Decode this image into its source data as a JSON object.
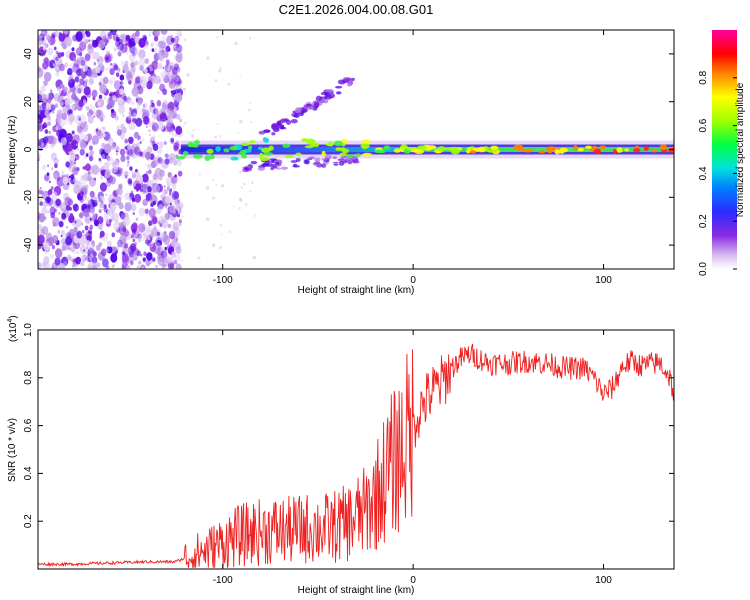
{
  "title": "C2E1.2026.004.00.08.G01",
  "chart_data": [
    {
      "type": "heatmap",
      "name": "spectrogram",
      "xlabel": "Height of straight line (km)",
      "ylabel": "Frequency (Hz)",
      "xlim": [
        -197,
        137
      ],
      "ylim": [
        -50,
        50
      ],
      "xticks": [
        -100,
        0,
        100
      ],
      "yticks": [
        -40,
        -20,
        0,
        20,
        40
      ],
      "colorbar": {
        "label": "Normalized spectral amplitude",
        "range": [
          0,
          1
        ],
        "ticks": [
          0.0,
          0.2,
          0.4,
          0.6,
          0.8
        ],
        "colors": [
          "#ffffff",
          "#8a2be2",
          "#0000ff",
          "#00ffff",
          "#00ff00",
          "#ffff00",
          "#ff0000",
          "#ff00ff"
        ]
      },
      "features": [
        {
          "region": "noise",
          "x_range": [
            -197,
            -122
          ],
          "f_range": [
            -50,
            50
          ],
          "amplitude": 0.2
        },
        {
          "region": "main_line",
          "x_range": [
            -122,
            137
          ],
          "f_center": 0,
          "amplitude_start": 0.4,
          "amplitude_end": 1.0
        },
        {
          "region": "upper_branch",
          "x_range": [
            -80,
            -30
          ],
          "f_range": [
            5,
            30
          ],
          "amplitude": 0.25
        },
        {
          "region": "lower_branch",
          "x_range": [
            -90,
            -30
          ],
          "f_range": [
            -5,
            -15
          ],
          "amplitude": 0.2
        }
      ]
    },
    {
      "type": "line",
      "name": "snr",
      "xlabel": "Height of straight line (km)",
      "ylabel": "SNR (10 * v/v)",
      "scale_label": "(x10",
      "scale_exp": "4",
      "xlim": [
        -197,
        137
      ],
      "ylim": [
        0,
        1.0
      ],
      "xticks": [
        -100,
        0,
        100
      ],
      "yticks": [
        0.2,
        0.4,
        0.6,
        0.8,
        1.0
      ],
      "color": "#ee2222",
      "x": [
        -197,
        -180,
        -160,
        -140,
        -125,
        -115,
        -105,
        -95,
        -85,
        -75,
        -65,
        -55,
        -45,
        -35,
        -25,
        -20,
        -15,
        -10,
        -6,
        -2,
        2,
        6,
        10,
        15,
        20,
        25,
        30,
        35,
        40,
        50,
        60,
        70,
        80,
        90,
        95,
        100,
        105,
        110,
        115,
        120,
        125,
        130,
        135,
        137
      ],
      "values": [
        0.02,
        0.02,
        0.025,
        0.03,
        0.03,
        0.06,
        0.09,
        0.13,
        0.15,
        0.16,
        0.16,
        0.17,
        0.17,
        0.19,
        0.24,
        0.3,
        0.38,
        0.45,
        0.5,
        0.56,
        0.64,
        0.7,
        0.74,
        0.78,
        0.84,
        0.88,
        0.9,
        0.88,
        0.86,
        0.86,
        0.87,
        0.86,
        0.84,
        0.84,
        0.8,
        0.73,
        0.76,
        0.85,
        0.87,
        0.85,
        0.86,
        0.86,
        0.8,
        0.72
      ]
    }
  ]
}
